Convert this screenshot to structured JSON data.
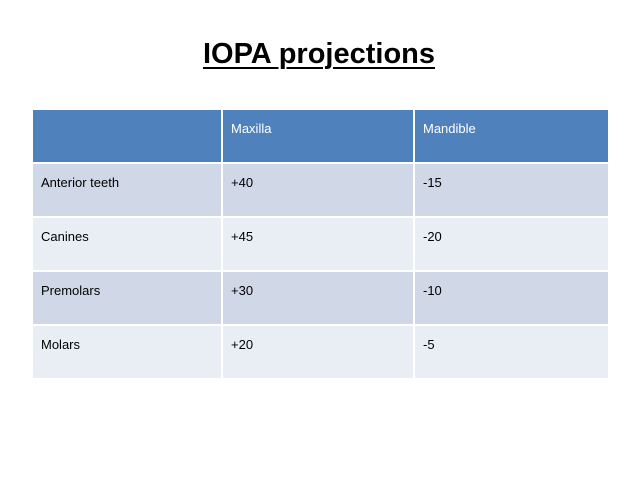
{
  "title": "IOPA projections",
  "table": {
    "headers": [
      "",
      "Maxilla",
      "Mandible"
    ],
    "rows": [
      [
        "Anterior teeth",
        "+40",
        "-15"
      ],
      [
        "Canines",
        "+45",
        "-20"
      ],
      [
        "Premolars",
        "+30",
        "-10"
      ],
      [
        "Molars",
        "+20",
        "-5"
      ]
    ]
  },
  "colors": {
    "header_fill": "#4f81bd",
    "row_fill_dark": "#d0d8e8",
    "row_fill_light": "#e9edf4"
  }
}
